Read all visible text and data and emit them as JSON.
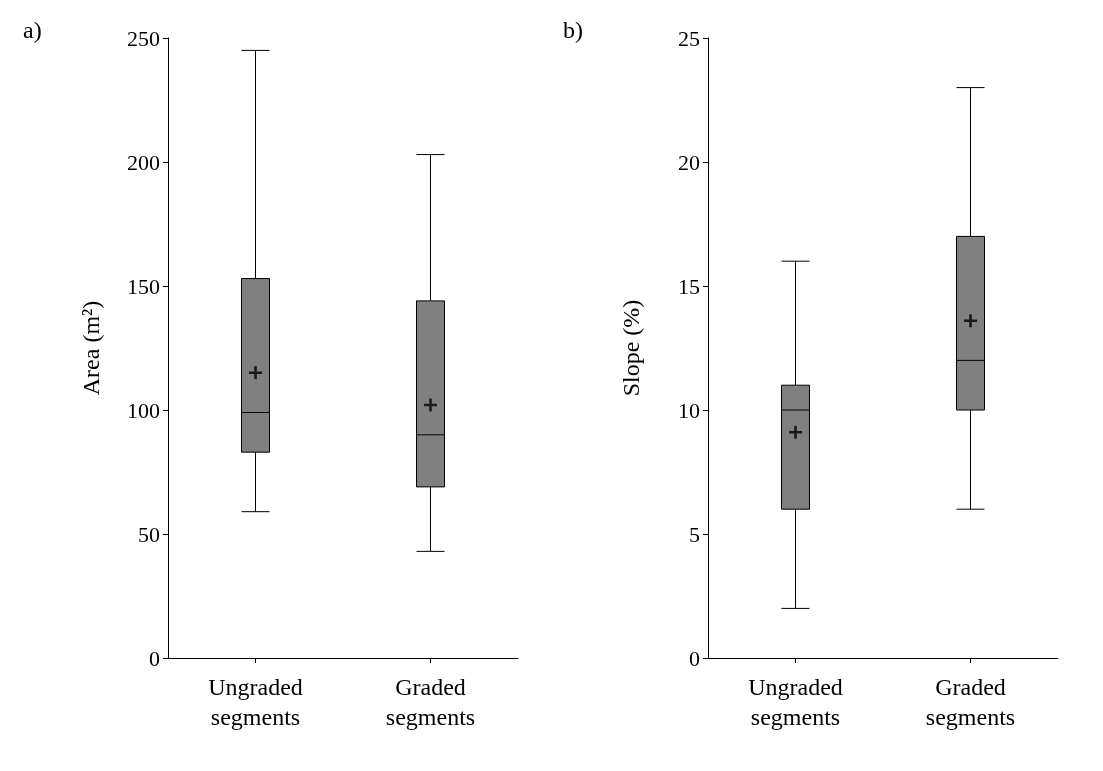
{
  "chart_data": [
    {
      "type": "box",
      "title": "a)",
      "ylabel": "Area (m²)",
      "categories": [
        "Ungraded segments",
        "Graded segments"
      ],
      "ylim": [
        0,
        250
      ],
      "yticks": [
        0,
        50,
        100,
        150,
        200,
        250
      ],
      "series": [
        {
          "color": "#808080",
          "boxes": [
            {
              "low": 59,
              "q1": 83,
              "median": 99,
              "q3": 153,
              "high": 245,
              "mean": 115
            },
            {
              "low": 43,
              "q1": 69,
              "median": 90,
              "q3": 144,
              "high": 203,
              "mean": 102
            }
          ]
        }
      ]
    },
    {
      "type": "box",
      "title": "b)",
      "ylabel": "Slope (%)",
      "categories": [
        "Ungraded segments",
        "Graded segments"
      ],
      "ylim": [
        0,
        25
      ],
      "yticks": [
        0,
        5,
        10,
        15,
        20,
        25
      ],
      "series": [
        {
          "color": "#808080",
          "boxes": [
            {
              "low": 2,
              "q1": 6,
              "median": 10,
              "q3": 11,
              "high": 16,
              "mean": 9.1
            },
            {
              "low": 6,
              "q1": 10,
              "median": 12,
              "q3": 17,
              "high": 23,
              "mean": 13.6
            }
          ]
        }
      ]
    }
  ]
}
